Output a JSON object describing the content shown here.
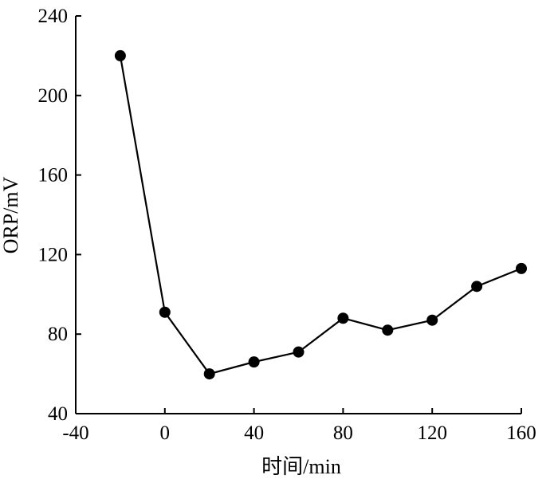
{
  "chart_data": {
    "type": "line",
    "title": "",
    "xlabel": "时间/min",
    "ylabel": "ORP/mV",
    "xlim": [
      -40,
      160
    ],
    "ylim": [
      40,
      240
    ],
    "xticks": [
      -40,
      0,
      40,
      80,
      120,
      160
    ],
    "yticks": [
      40,
      80,
      120,
      160,
      200,
      240
    ],
    "grid": false,
    "legend": "none",
    "series": [
      {
        "color": "#000000",
        "marker": "filled-circle",
        "x": [
          -20,
          0,
          20,
          40,
          60,
          80,
          100,
          120,
          140,
          160
        ],
        "y": [
          220,
          91,
          60,
          66,
          71,
          88,
          82,
          87,
          104,
          113
        ]
      }
    ]
  }
}
